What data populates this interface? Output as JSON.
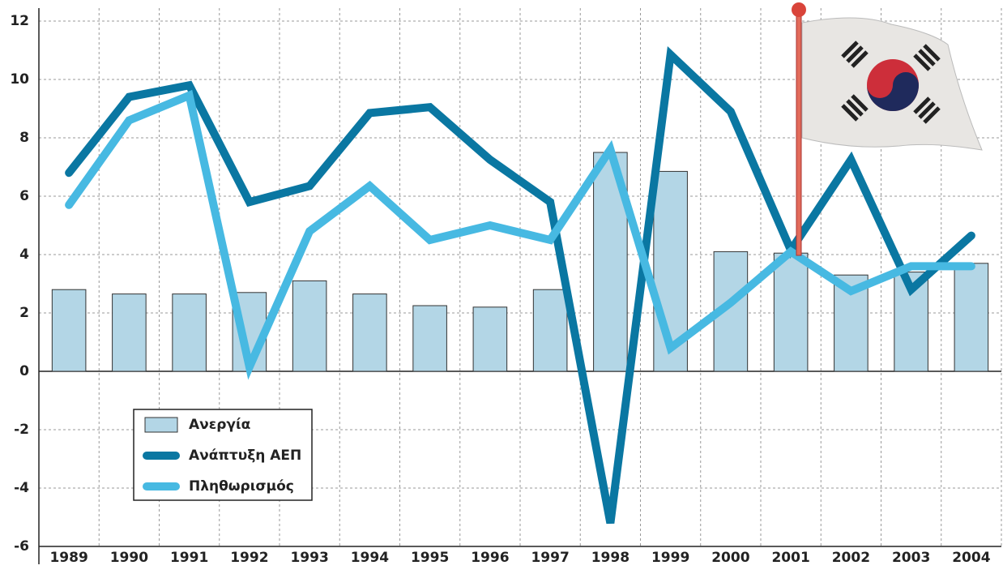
{
  "chart_data": {
    "type": "bar-line",
    "categories": [
      "1989",
      "1990",
      "1991",
      "1992",
      "1993",
      "1994",
      "1995",
      "1996",
      "1997",
      "1998",
      "1999",
      "2000",
      "2001",
      "2002",
      "2003",
      "2004"
    ],
    "series": [
      {
        "name": "Ανεργία",
        "kind": "bar",
        "color": "#b3d6e6",
        "values": [
          2.8,
          2.65,
          2.65,
          2.7,
          3.1,
          2.65,
          2.25,
          2.2,
          2.8,
          7.5,
          6.85,
          4.1,
          4.05,
          3.3,
          3.4,
          3.7
        ]
      },
      {
        "name": "Ανάπτυξη ΑΕΠ",
        "kind": "line",
        "color": "#0a77a2",
        "values": [
          6.8,
          9.4,
          9.8,
          5.8,
          6.35,
          8.85,
          9.05,
          7.25,
          5.8,
          -5.2,
          10.85,
          8.9,
          4.15,
          7.25,
          2.8,
          4.65
        ]
      },
      {
        "name": "Πληθωρισμός",
        "kind": "line",
        "color": "#47b9e2",
        "values": [
          5.7,
          8.6,
          9.45,
          0.15,
          4.8,
          6.35,
          4.5,
          5.0,
          4.5,
          7.6,
          0.8,
          2.35,
          4.1,
          2.75,
          3.6,
          3.6
        ]
      }
    ],
    "ylim": [
      -6,
      12
    ],
    "yticks": [
      -6,
      -4,
      -2,
      0,
      2,
      4,
      6,
      8,
      10,
      12
    ],
    "grid": true,
    "legend": "lower left"
  }
}
